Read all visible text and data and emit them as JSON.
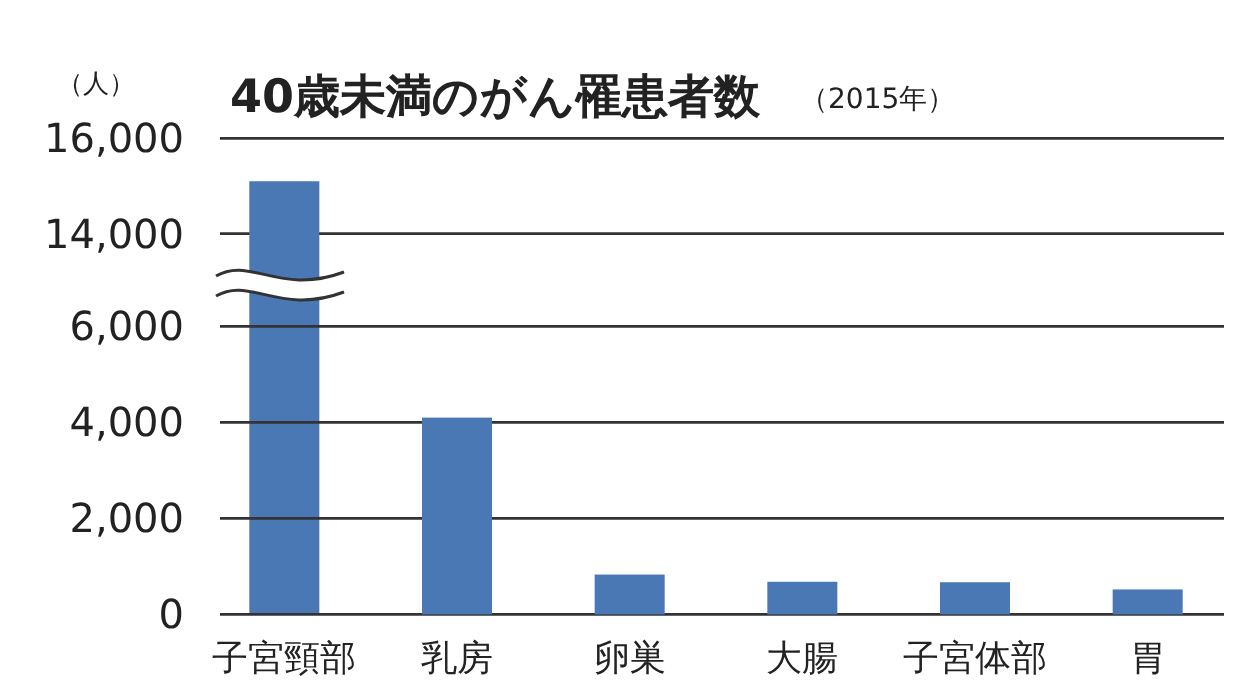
{
  "chart_data": [
    {
      "type": "bar",
      "title": "40歳未満のがん罹患者数",
      "subtitle": "（2015年）",
      "ylabel": "（人）",
      "values": [
        15100,
        null,
        null,
        null,
        null,
        null
      ],
      "color": "#4a78b5",
      "ylim": [
        14000,
        16000
      ],
      "yticks": [
        {
          "value": 14000,
          "label": "14,000"
        },
        {
          "value": 16000,
          "label": "16,000"
        }
      ],
      "grid": "y"
    },
    {
      "type": "bar",
      "categories": [
        "子宮頸部",
        "乳房",
        "卵巣",
        "大腸",
        "子宮体部",
        "胃"
      ],
      "values": [
        null,
        4100,
        830,
        680,
        670,
        520
      ],
      "color": "#4a78b5",
      "ylim": [
        0,
        6000
      ],
      "yticks": [
        0,
        {
          "value": 2000,
          "label": "2,000"
        },
        {
          "value": 4000,
          "label": "4,000"
        },
        {
          "value": 6000,
          "label": "6,000"
        }
      ],
      "grid": "y"
    }
  ]
}
